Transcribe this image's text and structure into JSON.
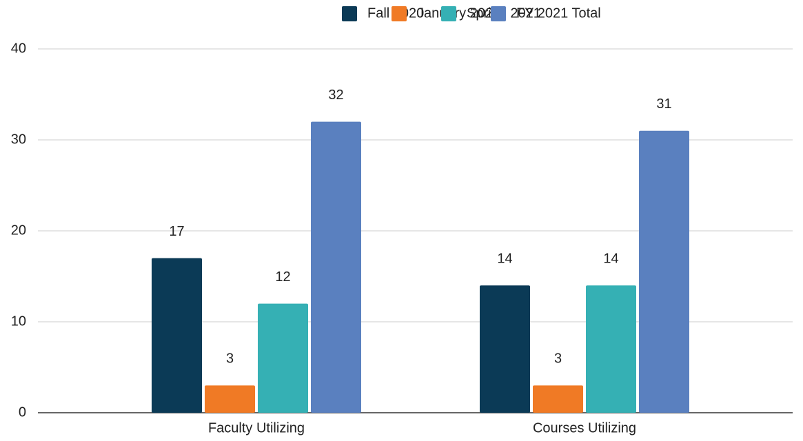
{
  "chart_data": {
    "type": "bar",
    "categories": [
      "Faculty Utilizing",
      "Courses Utilizing"
    ],
    "series": [
      {
        "name": "Fall 2020",
        "color": "#0b3a56",
        "values": [
          17,
          14
        ]
      },
      {
        "name": "January 2021",
        "color": "#f07a25",
        "values": [
          3,
          3
        ]
      },
      {
        "name": "Spring 2021",
        "color": "#35b0b4",
        "values": [
          12,
          14
        ]
      },
      {
        "name": "FY 2021 Total",
        "color": "#5a80bf",
        "values": [
          32,
          31
        ]
      }
    ],
    "ylim": [
      0,
      40
    ],
    "yticks": [
      0,
      10,
      20,
      30,
      40
    ],
    "grid": true,
    "legend": "top"
  }
}
